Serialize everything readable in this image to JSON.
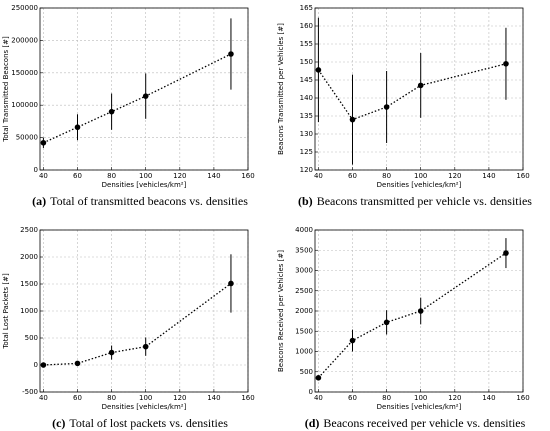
{
  "chart_data": [
    {
      "type": "line",
      "caption_label": "(a)",
      "caption": "Total of transmitted beacons vs. densities",
      "xlabel": "Densities [vehicles/km²]",
      "ylabel": "Total Transmitted Beacons [#]",
      "x": [
        40,
        60,
        80,
        100,
        150
      ],
      "series": [
        {
          "color": "#000000",
          "values": [
            42000,
            66000,
            90000,
            114000,
            179000
          ],
          "errors": [
            8000,
            20000,
            28000,
            35000,
            55000
          ]
        }
      ],
      "xlim": [
        38,
        160
      ],
      "xticks": [
        40,
        60,
        80,
        100,
        120,
        140,
        160
      ],
      "ylim": [
        0,
        250000
      ],
      "yticks": [
        0,
        50000,
        100000,
        150000,
        200000,
        250000
      ],
      "grid": true
    },
    {
      "type": "line",
      "caption_label": "(b)",
      "caption": "Beacons transmitted per vehicle vs. densities",
      "xlabel": "Densities [vehicles/km²]",
      "ylabel": "Beacons Transmitted per Vehicles [#]",
      "x": [
        40,
        60,
        80,
        100,
        150
      ],
      "series": [
        {
          "color": "#000000",
          "values": [
            147.8,
            134,
            137.5,
            143.5,
            149.5
          ],
          "errors": [
            14.5,
            12.5,
            10,
            9,
            10
          ]
        }
      ],
      "xlim": [
        38,
        160
      ],
      "xticks": [
        40,
        60,
        80,
        100,
        120,
        140,
        160
      ],
      "ylim": [
        120,
        165
      ],
      "yticks": [
        120,
        125,
        130,
        135,
        140,
        145,
        150,
        155,
        160,
        165
      ],
      "grid": true
    },
    {
      "type": "line",
      "caption_label": "(c)",
      "caption": "Total of lost packets vs. densities",
      "xlabel": "Densities [vehicles/km²]",
      "ylabel": "Total Lost Packets [#]",
      "x": [
        40,
        60,
        80,
        100,
        150
      ],
      "series": [
        {
          "color": "#000000",
          "values": [
            0,
            30,
            230,
            340,
            1510
          ],
          "errors": [
            10,
            20,
            130,
            170,
            540
          ]
        }
      ],
      "xlim": [
        38,
        160
      ],
      "xticks": [
        40,
        60,
        80,
        100,
        120,
        140,
        160
      ],
      "ylim": [
        -500,
        2500
      ],
      "yticks": [
        -500,
        0,
        500,
        1000,
        1500,
        2000,
        2500
      ],
      "grid": true
    },
    {
      "type": "line",
      "caption_label": "(d)",
      "caption": "Beacons received per vehicle vs. densities",
      "xlabel": "Densities [vehicles/km²]",
      "ylabel": "Beacons Received per Vehicles [#]",
      "x": [
        40,
        60,
        80,
        100,
        150
      ],
      "series": [
        {
          "color": "#000000",
          "values": [
            350,
            1270,
            1720,
            2000,
            3430
          ],
          "errors": [
            50,
            270,
            300,
            330,
            370
          ]
        }
      ],
      "xlim": [
        38,
        160
      ],
      "xticks": [
        40,
        60,
        80,
        100,
        120,
        140,
        160
      ],
      "ylim": [
        0,
        4000
      ],
      "yticks": [
        0,
        500,
        1000,
        1500,
        2000,
        2500,
        3000,
        3500,
        4000
      ],
      "grid": true
    }
  ]
}
